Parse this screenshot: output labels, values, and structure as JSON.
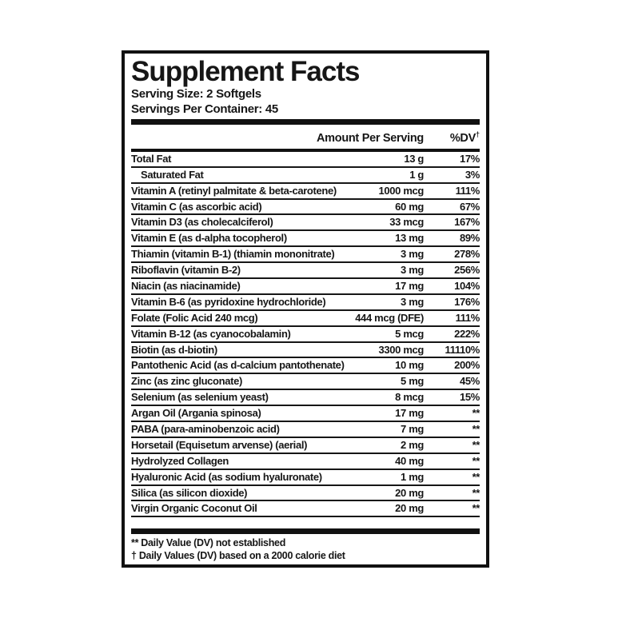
{
  "label": {
    "title": "Supplement Facts",
    "serving_size": "Serving Size: 2 Softgels",
    "servings_per_container": "Servings Per Container: 45",
    "columns": {
      "amount": "Amount Per Serving",
      "dv": "%DV",
      "dv_dagger": "†"
    },
    "rows": [
      {
        "name": "Total Fat",
        "amount": "13 g",
        "dv": "17%",
        "indent": false
      },
      {
        "name": "Saturated Fat",
        "amount": "1 g",
        "dv": "3%",
        "indent": true
      },
      {
        "name": "Vitamin A (retinyl palmitate & beta-carotene)",
        "amount": "1000 mcg",
        "dv": "111%",
        "indent": false
      },
      {
        "name": "Vitamin C (as ascorbic acid)",
        "amount": "60 mg",
        "dv": "67%",
        "indent": false
      },
      {
        "name": "Vitamin D3 (as cholecalciferol)",
        "amount": "33 mcg",
        "dv": "167%",
        "indent": false
      },
      {
        "name": "Vitamin E (as d-alpha tocopherol)",
        "amount": "13 mg",
        "dv": "89%",
        "indent": false
      },
      {
        "name": "Thiamin (vitamin B-1) (thiamin mononitrate)",
        "amount": "3 mg",
        "dv": "278%",
        "indent": false
      },
      {
        "name": "Riboflavin (vitamin B-2)",
        "amount": "3 mg",
        "dv": "256%",
        "indent": false
      },
      {
        "name": "Niacin (as niacinamide)",
        "amount": "17 mg",
        "dv": "104%",
        "indent": false
      },
      {
        "name": "Vitamin B-6 (as pyridoxine hydrochloride)",
        "amount": "3 mg",
        "dv": "176%",
        "indent": false
      },
      {
        "name": "Folate (Folic Acid 240 mcg)",
        "amount": "444 mcg (DFE)",
        "dv": "111%",
        "indent": false
      },
      {
        "name": "Vitamin B-12 (as cyanocobalamin)",
        "amount": "5 mcg",
        "dv": "222%",
        "indent": false
      },
      {
        "name": "Biotin (as d-biotin)",
        "amount": "3300 mcg",
        "dv": "11110%",
        "indent": false
      },
      {
        "name": "Pantothenic Acid (as d-calcium pantothenate)",
        "amount": "10 mg",
        "dv": "200%",
        "indent": false
      },
      {
        "name": "Zinc (as zinc gluconate)",
        "amount": "5 mg",
        "dv": "45%",
        "indent": false
      },
      {
        "name": "Selenium (as selenium yeast)",
        "amount": "8 mcg",
        "dv": "15%",
        "indent": false
      },
      {
        "name": "Argan Oil (Argania spinosa)",
        "amount": "17 mg",
        "dv": "**",
        "indent": false
      },
      {
        "name": "PABA (para-aminobenzoic acid)",
        "amount": "7 mg",
        "dv": "**",
        "indent": false
      },
      {
        "name": "Horsetail (Equisetum arvense) (aerial)",
        "amount": "2 mg",
        "dv": "**",
        "indent": false
      },
      {
        "name": "Hydrolyzed Collagen",
        "amount": "40 mg",
        "dv": "**",
        "indent": false
      },
      {
        "name": "Hyaluronic Acid (as sodium hyaluronate)",
        "amount": "1 mg",
        "dv": "**",
        "indent": false
      },
      {
        "name": "Silica (as silicon dioxide)",
        "amount": "20 mg",
        "dv": "**",
        "indent": false
      },
      {
        "name": "Virgin Organic Coconut Oil",
        "amount": "20 mg",
        "dv": "**",
        "indent": false
      }
    ],
    "footnotes": [
      "** Daily Value (DV) not established",
      "† Daily Values (DV) based on a 2000 calorie diet"
    ],
    "colors": {
      "ink": "#161616",
      "background": "#ffffff"
    }
  }
}
